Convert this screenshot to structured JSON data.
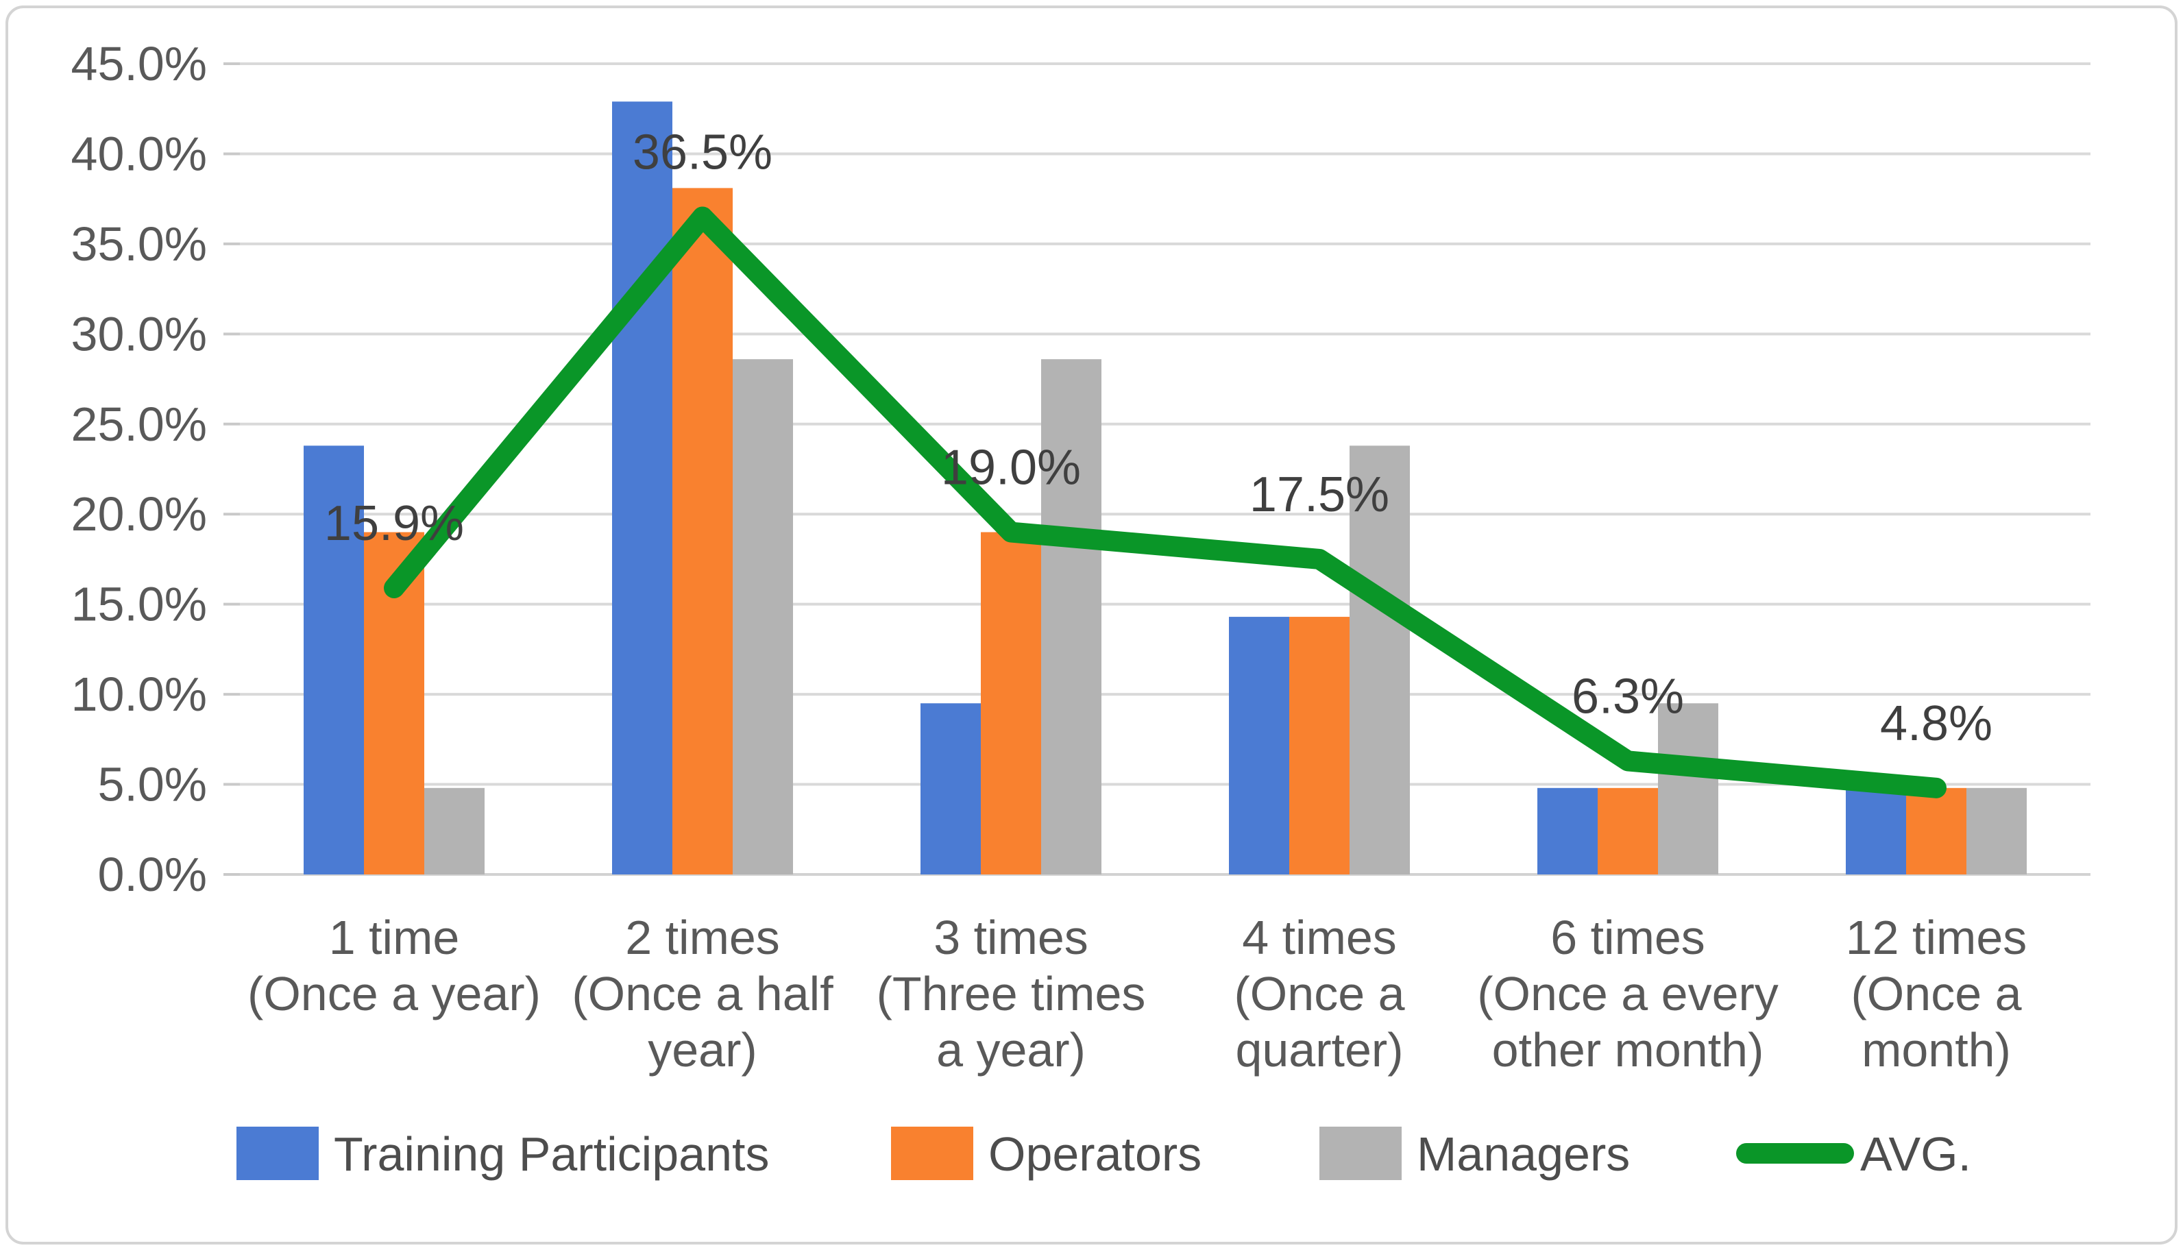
{
  "chart_data": {
    "type": "bar",
    "subtype": "grouped-bars-with-average-line",
    "title": "",
    "categories": [
      {
        "lines": [
          "1 time",
          "(Once a year)"
        ]
      },
      {
        "lines": [
          "2 times",
          "(Once a half",
          "year)"
        ]
      },
      {
        "lines": [
          "3 times",
          "(Three times",
          "a year)"
        ]
      },
      {
        "lines": [
          "4 times",
          "(Once a",
          "quarter)"
        ]
      },
      {
        "lines": [
          "6 times",
          "(Once a every",
          "other month)"
        ]
      },
      {
        "lines": [
          "12 times",
          "(Once a",
          "month)"
        ]
      }
    ],
    "series": [
      {
        "name": "Training Participants",
        "type": "bar",
        "color": "#4B7BD3",
        "values": [
          23.8,
          42.9,
          9.5,
          14.3,
          4.8,
          4.8
        ]
      },
      {
        "name": "Operators",
        "type": "bar",
        "color": "#F9812F",
        "values": [
          19.0,
          38.1,
          19.0,
          14.3,
          4.8,
          4.8
        ]
      },
      {
        "name": "Managers",
        "type": "bar",
        "color": "#B3B3B3",
        "values": [
          4.8,
          28.6,
          28.6,
          23.8,
          9.5,
          4.8
        ]
      },
      {
        "name": "AVG.",
        "type": "line",
        "color": "#0A9628",
        "values": [
          15.9,
          36.5,
          19.0,
          17.5,
          6.3,
          4.8
        ],
        "point_labels": [
          "15.9%",
          "36.5%",
          "19.0%",
          "17.5%",
          "6.3%",
          "4.8%"
        ]
      }
    ],
    "y_axis": {
      "min": 0,
      "max": 45,
      "step": 5,
      "tick_labels": [
        "0.0%",
        "5.0%",
        "10.0%",
        "15.0%",
        "20.0%",
        "25.0%",
        "30.0%",
        "35.0%",
        "40.0%",
        "45.0%"
      ]
    },
    "ylim": [
      0,
      45
    ],
    "grid": true,
    "legend_position": "bottom"
  },
  "style": {
    "gridline": "#D9D9D9",
    "axis_line": "#D2D2D2",
    "tick_mark": "#C9C9C9",
    "tick_text": "#595959",
    "category_text": "#595959",
    "data_label_text": "#3F3F3F",
    "legend_text": "#4D4D4D",
    "frame_border": "#D4D4D4",
    "background": "#FFFFFF"
  }
}
